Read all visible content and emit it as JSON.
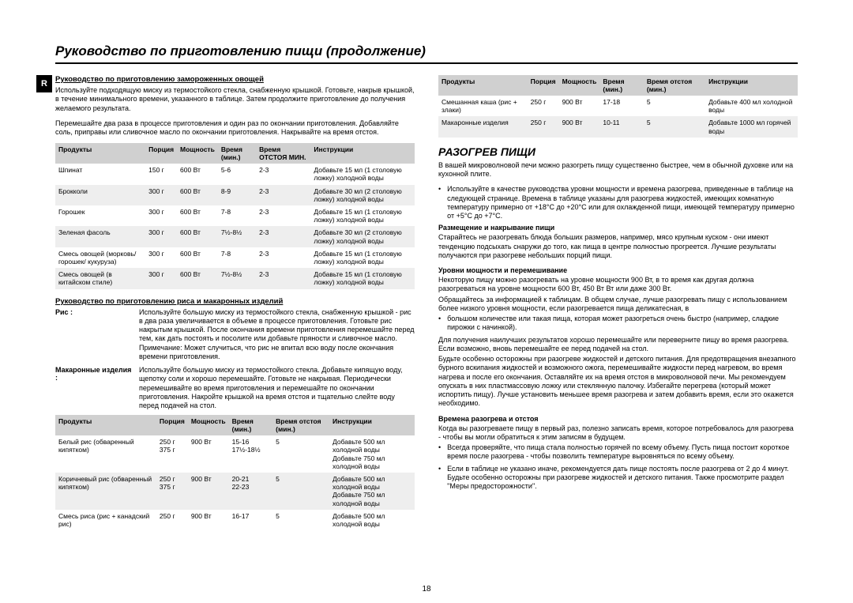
{
  "title": "Руководство по приготовлению пищи (продолжение)",
  "r_badge": "R",
  "page_num": "18",
  "left": {
    "h1": "Руководство по приготовлению замороженных овощей",
    "p1": "Используйте подходящую миску из термостойкого стекла, снабженную крышкой. Готовьте, накрыв крышкой, в течение минимального времени, указанного в таблице. Затем продолжите приготовление до получения желаемого результата.",
    "p2": "Перемешайте два раза в процессе приготовления и один раз по окончании приготовления. Добавляйте соль, приправы или сливочное масло по окончании приготовления. Накрывайте на время отстоя.",
    "table1": {
      "headers": [
        "Продукты",
        "Порция",
        "Мощность",
        "Время (мин.)",
        "Время ОТСТОЯ МИН.",
        "Инструкции"
      ],
      "rows": [
        [
          "Шпинат",
          "150 г",
          "600 Вт",
          "5-6",
          "2-3",
          "Добавьте 15 мл (1 столовую ложку) холодной воды"
        ],
        [
          "Брокколи",
          "300 г",
          "600 Вт",
          "8-9",
          "2-3",
          "Добавьте 30 мл (2 столовую ложку) холодной воды"
        ],
        [
          "Горошек",
          "300 г",
          "600 Вт",
          "7-8",
          "2-3",
          "Добавьте 15 мл (1 столовую ложку) холодной воды"
        ],
        [
          "Зеленая фасоль",
          "300 г",
          "600 Вт",
          "7½-8½",
          "2-3",
          "Добавьте 30 мл (2 столовую ложку) холодной воды"
        ],
        [
          "Смесь овощей (морковь/ горошек/ кукуруза)",
          "300 г",
          "600 Вт",
          "7-8",
          "2-3",
          "Добавьте 15 мл (1 столовую ложку) холодной воды"
        ],
        [
          "Смесь овощей (в китайском стиле)",
          "300 г",
          "600 Вт",
          "7½-8½",
          "2-3",
          "Добавьте 15 мл (1 столовую ложку) холодной воды"
        ]
      ]
    },
    "h2": "Руководство по приготовлению риса и макаронных изделий",
    "rice_label": "Рис :",
    "rice_text": "Используйте большую миску из термостойкого стекла, снабженную крышкой - рис в два раза увеличивается в объеме в процессе приготовления. Готовьте рис накрытым крышкой. После окончания времени приготовления перемешайте перед тем, как дать постоять и посолите или добавьте пряности и сливочное масло.",
    "rice_note": "Примечание: Может случиться, что рис не впитал всю воду после окончания времени приготовления.",
    "pasta_label": "Макаронные изделия :",
    "pasta_text": "Используйте большую миску из термостойкого стекла. Добавьте кипящую воду, щепотку соли и хорошо перемешайте. Готовьте не накрывая. Периодически перемешивайте во время приготовления и перемешайте по окончании приготовления. Накройте крышкой на время отстоя и тщательно слейте воду перед подачей на стол.",
    "table2": {
      "headers": [
        "Продукты",
        "Порция",
        "Мощность",
        "Время (мин.)",
        "Время отстоя (мин.)",
        "Инструкции"
      ],
      "rows": [
        [
          "Белый рис (обваренный кипятком)",
          "250 г\n375 г",
          "900 Вт",
          "15-16\n17½-18½",
          "5",
          "Добавьте 500 мл холодной воды\nДобавьте 750 мл холодной воды"
        ],
        [
          "Коричневый рис (обваренный кипятком)",
          "250 г\n375 г",
          "900 Вт",
          "20-21\n22-23",
          "5",
          "Добавьте 500 мл холодной воды\nДобавьте 750 мл холодной воды"
        ],
        [
          "Смесь риса (рис + канадский рис)",
          "250 г",
          "900 Вт",
          "16-17",
          "5",
          "Добавьте 500 мл холодной воды"
        ]
      ]
    }
  },
  "right": {
    "table3": {
      "headers": [
        "Продукты",
        "Порция",
        "Мощность",
        "Время (мин.)",
        "Время отстоя (мин.)",
        "Инструкции"
      ],
      "rows": [
        [
          "Смешанная каша (рис + злаки)",
          "250 г",
          "900 Вт",
          "17-18",
          "5",
          "Добавьте 400 мл холодной воды"
        ],
        [
          "Макаронные изделия",
          "250 г",
          "900 Вт",
          "10-11",
          "5",
          "Добавьте 1000 мл горячей воды"
        ]
      ]
    },
    "h_reheat": "РАЗОГРЕВ ПИЩИ",
    "p_reheat1": "В вашей микроволновой печи можно разогреть пищу существенно быстрее, чем в обычной духовке или на кухонной плите.",
    "bullet1": "Используйте в качестве руководства уровни мощности и времена разогрева, приведенные в таблице на следующей странице. Времена в таблице указаны для разогрева жидкостей, имеющих комнатную температуру примерно от +18°C до +20°C или для охлажденной пищи, имеющей температуру примерно от +5°C до +7°C.",
    "h_place": "Размещение и накрывание пищи",
    "p_place": "Старайтесь не разогревать блюда больших размеров, например, мясо крупным куском - они имеют тенденцию подсыхать снаружи до того, как пища в центре полностью прогреется. Лучшие результаты получаются при разогреве небольших порций пищи.",
    "h_power": "Уровни мощности и перемешивание",
    "p_power": "Некоторую пищу можно разогревать на уровне мощности 900 Вт, в то время как другая должна разогреваться на уровне мощности 600 Вт, 450 Вт Вт или даже 300 Вт.",
    "p_power2": "Обращайтесь за информацией к таблицам. В общем случае, лучше разогревать пищу с использованием более низкого уровня мощности, если разогревается пища деликатесная, в",
    "bullet2": "большом количестве или такая пища, которая может разогреться очень быстро (например, сладкие пирожки с начинкой).",
    "p_power3": "Для получения наилучших результатов хорошо перемешайте или переверните пищу во время разогрева. Если возможно, вновь перемешайте ее перед подачей на стол.",
    "p_power4": "Будьте особенно осторожны при разогреве жидкостей и детского питания. Для предотвращения внезапного бурного вскипания жидкостей и возможного ожога, перемешивайте жидкости перед нагревом, во время нагрева и после его окончания. Оставляйте их на время отстоя в микроволновой печи. Мы рекомендуем опускать в них пластмассовую ложку или стеклянную палочку. Избегайте перегрева (который может испортить пищу). Лучше установить меньшее время разогрева и затем добавить время, если это окажется необходимо.",
    "h_times": "Времена разогрева и отстоя",
    "p_times": "Когда вы разогреваете пищу в первый раз, полезно записать время, которое потребовалось для разогрева - чтобы вы могли обратиться к этим записям в будущем.",
    "bullet3": "Всегда проверяйте, что пища стала полностью горячей по всему объему. Пусть пища постоит короткое время после разогрева - чтобы позволить температуре выровняться по всему объему.",
    "bullet4": "Если в таблице не указано иначе, рекомендуется дать пище постоять после разогрева от 2 до 4 минут.  Будьте особенно осторожны при разогреве жидкостей и детского питания. Также просмотрите раздел \"Меры предосторожности\"."
  }
}
